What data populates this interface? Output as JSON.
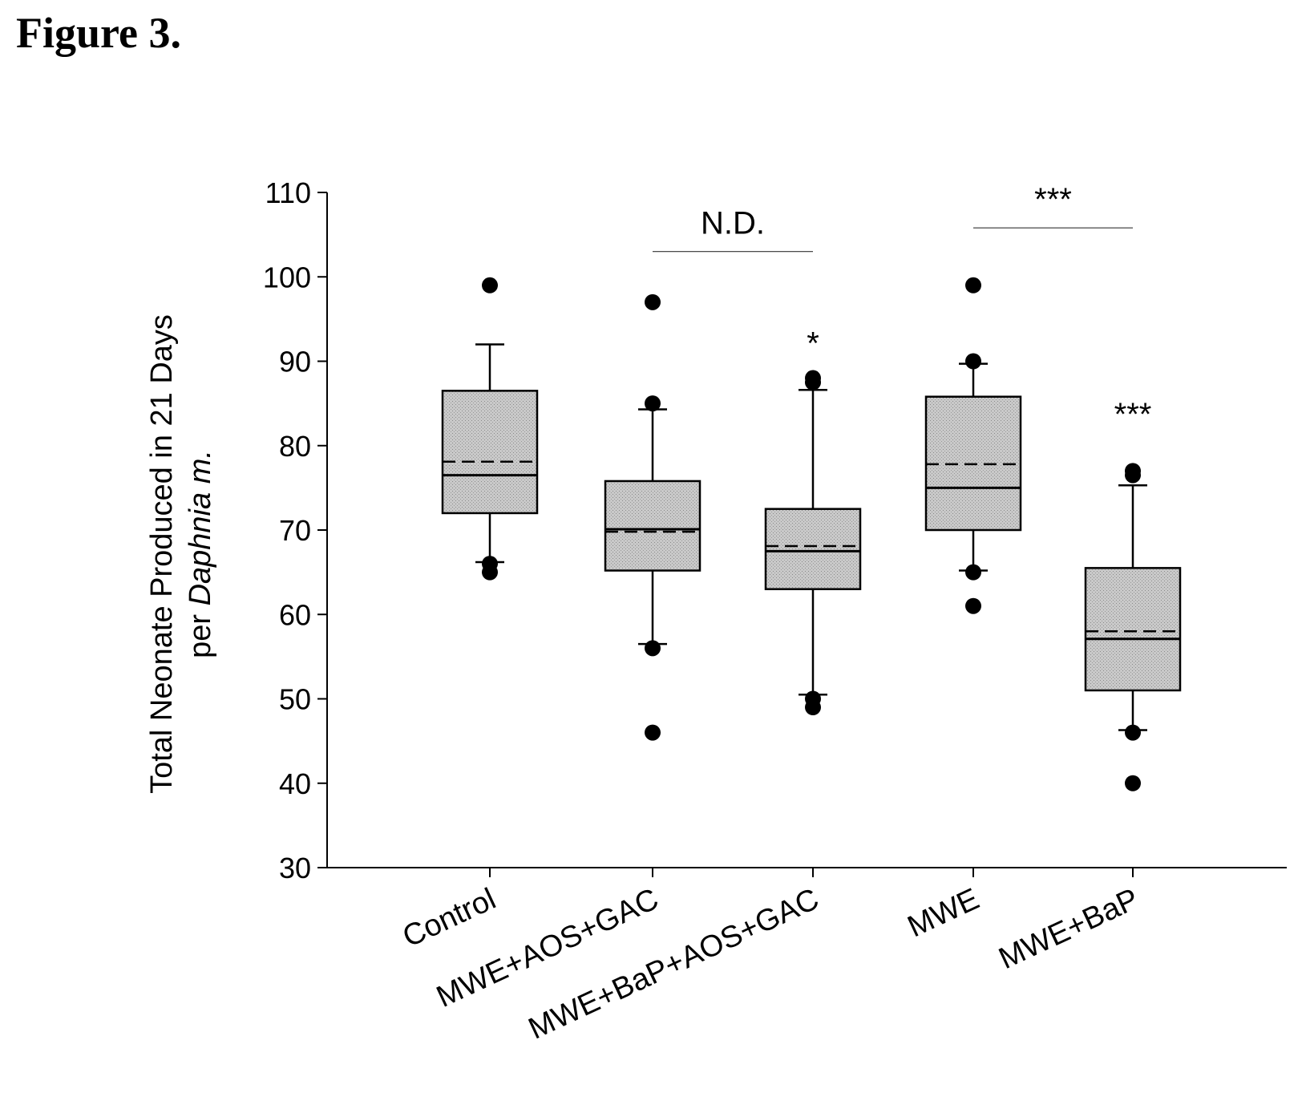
{
  "figure_label": "Figure 3.",
  "chart_data": {
    "type": "box",
    "ylabel_line1": "Total Neonate Produced in 21 Days",
    "ylabel_line2_prefix": "per ",
    "ylabel_line2_italic": "Daphnia m.",
    "ylim": [
      30,
      110
    ],
    "yticks": [
      30,
      40,
      50,
      60,
      70,
      80,
      90,
      100,
      110
    ],
    "categories": [
      "Control",
      "MWE+AOS+GAC",
      "MWE+BaP+AOS+GAC",
      "MWE",
      "MWE+BaP"
    ],
    "boxes": [
      {
        "q1": 72,
        "median": 76.5,
        "mean": 78.1,
        "q3": 86.5,
        "whisker_low": 66.2,
        "whisker_high": 92,
        "outliers": [
          99,
          66,
          65
        ],
        "annotation": ""
      },
      {
        "q1": 65.2,
        "median": 70.1,
        "mean": 69.8,
        "q3": 75.8,
        "whisker_low": 56.5,
        "whisker_high": 84.3,
        "outliers": [
          97,
          85,
          56,
          46
        ],
        "annotation": ""
      },
      {
        "q1": 63,
        "median": 67.5,
        "mean": 68.1,
        "q3": 72.5,
        "whisker_low": 50.5,
        "whisker_high": 86.6,
        "outliers": [
          88,
          87.5,
          50,
          49
        ],
        "annotation": "*"
      },
      {
        "q1": 70,
        "median": 75,
        "mean": 77.8,
        "q3": 85.8,
        "whisker_low": 65.2,
        "whisker_high": 89.7,
        "outliers": [
          99,
          90,
          65,
          61
        ],
        "annotation": ""
      },
      {
        "q1": 51,
        "median": 57.1,
        "mean": 58,
        "q3": 65.5,
        "whisker_low": 46.3,
        "whisker_high": 75.3,
        "outliers": [
          77,
          76.5,
          46,
          40
        ],
        "annotation": "***"
      }
    ],
    "comparisons": [
      {
        "from": 1,
        "to": 2,
        "y": 103,
        "label": "N.D."
      },
      {
        "from": 3,
        "to": 4,
        "y": 105.8,
        "label": "***"
      }
    ],
    "box_fill": "#c4c4c4",
    "marker_color": "#000000"
  }
}
